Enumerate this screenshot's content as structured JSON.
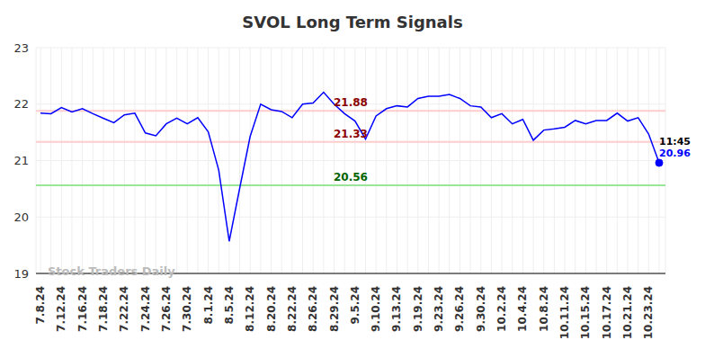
{
  "chart_data": {
    "type": "line",
    "title": "SVOL Long Term Signals",
    "watermark": "Stock Traders Daily",
    "last_point_time": "11:45",
    "categories": [
      "7.8.24",
      null,
      "7.12.24",
      null,
      "7.16.24",
      null,
      "7.18.24",
      null,
      "7.22.24",
      null,
      "7.24.24",
      null,
      "7.26.24",
      null,
      "7.30.24",
      null,
      "8.1.24",
      null,
      "8.5.24",
      null,
      "8.12.24",
      null,
      "8.20.24",
      null,
      "8.22.24",
      null,
      "8.26.24",
      null,
      "8.29.24",
      null,
      "9.5.24",
      null,
      "9.10.24",
      null,
      "9.13.24",
      null,
      "9.19.24",
      null,
      "9.23.24",
      null,
      "9.26.24",
      null,
      "9.30.24",
      null,
      "10.2.24",
      null,
      "10.4.24",
      null,
      "10.8.24",
      null,
      "10.11.24",
      null,
      "10.15.24",
      null,
      "10.17.24",
      null,
      "10.21.24",
      null,
      "10.23.24",
      null
    ],
    "values": [
      21.84,
      21.83,
      21.94,
      21.86,
      21.92,
      21.83,
      21.75,
      21.67,
      21.81,
      21.84,
      21.49,
      21.44,
      21.65,
      21.75,
      21.65,
      21.76,
      21.51,
      20.83,
      19.57,
      20.51,
      21.43,
      22.0,
      21.9,
      21.87,
      21.76,
      22.0,
      22.02,
      22.21,
      22.0,
      21.83,
      21.7,
      21.38,
      21.79,
      21.92,
      21.97,
      21.95,
      22.1,
      22.14,
      22.14,
      22.17,
      22.1,
      21.97,
      21.95,
      21.76,
      21.83,
      21.65,
      21.73,
      21.36,
      21.54,
      21.56,
      21.59,
      21.71,
      21.65,
      21.71,
      21.71,
      21.84,
      21.7,
      21.76,
      21.47,
      20.96
    ],
    "color": "#0000ff",
    "ylim": [
      19,
      23
    ],
    "yticks": [
      19,
      20,
      21,
      22,
      23
    ],
    "grid": true,
    "reference_lines": [
      {
        "value": 21.88,
        "color": "#ffcccc",
        "label_color": "#8b0000"
      },
      {
        "value": 21.33,
        "color": "#ffcccc",
        "label_color": "#8b0000"
      },
      {
        "value": 20.56,
        "color": "#99e699",
        "label_color": "#006400"
      }
    ]
  }
}
